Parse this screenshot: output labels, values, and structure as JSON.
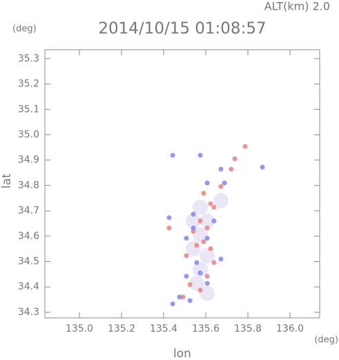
{
  "chart_data": {
    "type": "scatter",
    "title": "2014/10/15 01:08:57",
    "subtitle": "ALT(km) 2.0",
    "ylabel": "lat",
    "xlabel": "lon",
    "yunit": "(deg)",
    "xunit": "(deg)",
    "xlim": [
      134.836,
      136.141
    ],
    "ylim": [
      34.278,
      35.335
    ],
    "xticks": [
      {
        "value": 135,
        "label": "135.0"
      },
      135.2,
      135.4,
      135.6,
      135.8,
      {
        "value": 136,
        "label": "136.0"
      }
    ],
    "yticks": [
      34.3,
      34.4,
      34.5,
      34.6,
      34.7,
      34.8,
      34.9,
      {
        "value": 35,
        "label": "35.0"
      },
      35.1,
      35.2,
      35.3
    ],
    "series": [
      {
        "color": "#e6e2f3",
        "x": [
          135.574,
          135.541,
          135.607,
          135.574,
          135.541,
          135.607,
          135.574,
          135.557,
          135.607,
          135.672
        ],
        "values": [
          34.714,
          34.66,
          34.66,
          34.605,
          34.551,
          34.523,
          34.469,
          34.414,
          34.374,
          34.741
        ]
      },
      {
        "color": "#ee7f7f",
        "x": [
          135.787,
          135.721,
          135.623,
          135.639,
          135.574,
          135.607,
          135.59,
          135.557,
          135.508,
          135.623,
          135.639,
          135.607,
          135.525,
          135.574,
          135.492,
          135.672,
          135.59,
          135.426,
          135.541,
          135.738
        ],
        "values": [
          34.954,
          34.864,
          34.728,
          34.714,
          34.66,
          34.632,
          34.578,
          34.564,
          34.523,
          34.551,
          34.496,
          34.442,
          34.409,
          34.387,
          34.36,
          34.796,
          34.769,
          34.632,
          34.619,
          34.905
        ]
      },
      {
        "color": "#7f86ee",
        "x": [
          135.443,
          135.574,
          135.607,
          135.689,
          135.672,
          135.541,
          135.607,
          135.508,
          135.557,
          135.672,
          135.574,
          135.508,
          135.607,
          135.475,
          135.525,
          135.443,
          135.426,
          135.639,
          135.541,
          135.869
        ],
        "values": [
          34.919,
          34.919,
          34.81,
          34.81,
          34.864,
          34.632,
          34.592,
          34.592,
          34.496,
          34.51,
          34.455,
          34.442,
          34.414,
          34.36,
          34.346,
          34.333,
          34.673,
          34.66,
          34.687,
          34.872
        ]
      }
    ]
  }
}
